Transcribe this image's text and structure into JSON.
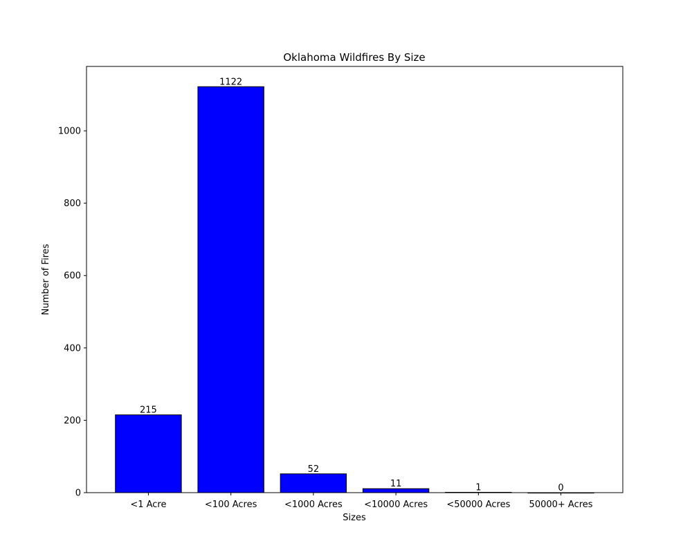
{
  "chart_data": {
    "type": "bar",
    "title": "Oklahoma Wildfires By Size",
    "xlabel": "Sizes",
    "ylabel": "Number of Fires",
    "categories": [
      "<1 Acre",
      "<100 Acres",
      "<1000 Acres",
      "<10000 Acres",
      "<50000 Acres",
      "50000+ Acres"
    ],
    "values": [
      215,
      1122,
      52,
      11,
      1,
      0
    ],
    "data_labels": [
      "215",
      "1122",
      "52",
      "11",
      "1",
      "0"
    ],
    "ylim": [
      0,
      1178
    ],
    "yticks": [
      0,
      200,
      400,
      600,
      800,
      1000
    ],
    "grid": false,
    "legend": "none",
    "bar_color": "#0000ff",
    "edge_color": "#000000"
  }
}
